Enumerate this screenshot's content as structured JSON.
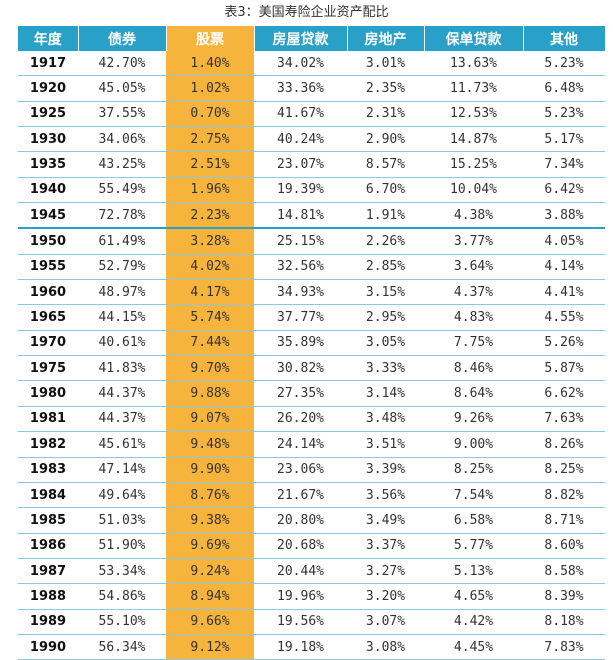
{
  "title": "表3：美国寿险企业资产配比",
  "headers": [
    "年度",
    "债券",
    "股票",
    "房屋贷款",
    "房地产",
    "保单贷款",
    "其他"
  ],
  "highlight_color": "#f7b43c",
  "header_color": "#29a0c8",
  "rows": [
    [
      "1917",
      "42.70%",
      "1.40%",
      "34.02%",
      "3.01%",
      "13.63%",
      "5.23%"
    ],
    [
      "1920",
      "45.05%",
      "1.02%",
      "33.36%",
      "2.35%",
      "11.73%",
      "6.48%"
    ],
    [
      "1925",
      "37.55%",
      "0.70%",
      "41.67%",
      "2.31%",
      "12.53%",
      "5.23%"
    ],
    [
      "1930",
      "34.06%",
      "2.75%",
      "40.24%",
      "2.90%",
      "14.87%",
      "5.17%"
    ],
    [
      "1935",
      "43.25%",
      "2.51%",
      "23.07%",
      "8.57%",
      "15.25%",
      "7.34%"
    ],
    [
      "1940",
      "55.49%",
      "1.96%",
      "19.39%",
      "6.70%",
      "10.04%",
      "6.42%"
    ],
    [
      "1945",
      "72.78%",
      "2.23%",
      "14.81%",
      "1.91%",
      "4.38%",
      "3.88%"
    ],
    [
      "1950",
      "61.49%",
      "3.28%",
      "25.15%",
      "2.26%",
      "3.77%",
      "4.05%"
    ],
    [
      "1955",
      "52.79%",
      "4.02%",
      "32.56%",
      "2.85%",
      "3.64%",
      "4.14%"
    ],
    [
      "1960",
      "48.97%",
      "4.17%",
      "34.93%",
      "3.15%",
      "4.37%",
      "4.41%"
    ],
    [
      "1965",
      "44.15%",
      "5.74%",
      "37.77%",
      "2.95%",
      "4.83%",
      "4.55%"
    ],
    [
      "1970",
      "40.61%",
      "7.44%",
      "35.89%",
      "3.05%",
      "7.75%",
      "5.26%"
    ],
    [
      "1975",
      "41.83%",
      "9.70%",
      "30.82%",
      "3.33%",
      "8.46%",
      "5.87%"
    ],
    [
      "1980",
      "44.37%",
      "9.88%",
      "27.35%",
      "3.14%",
      "8.64%",
      "6.62%"
    ],
    [
      "1981",
      "44.37%",
      "9.07%",
      "26.20%",
      "3.48%",
      "9.26%",
      "7.63%"
    ],
    [
      "1982",
      "45.61%",
      "9.48%",
      "24.14%",
      "3.51%",
      "9.00%",
      "8.26%"
    ],
    [
      "1983",
      "47.14%",
      "9.90%",
      "23.06%",
      "3.39%",
      "8.25%",
      "8.25%"
    ],
    [
      "1984",
      "49.64%",
      "8.76%",
      "21.67%",
      "3.56%",
      "7.54%",
      "8.82%"
    ],
    [
      "1985",
      "51.03%",
      "9.38%",
      "20.80%",
      "3.49%",
      "6.58%",
      "8.71%"
    ],
    [
      "1986",
      "51.90%",
      "9.69%",
      "20.68%",
      "3.37%",
      "5.77%",
      "8.60%"
    ],
    [
      "1987",
      "53.34%",
      "9.24%",
      "20.44%",
      "3.27%",
      "5.13%",
      "8.58%"
    ],
    [
      "1988",
      "54.86%",
      "8.94%",
      "19.96%",
      "3.20%",
      "4.65%",
      "8.39%"
    ],
    [
      "1989",
      "55.10%",
      "9.66%",
      "19.56%",
      "3.07%",
      "4.42%",
      "8.18%"
    ],
    [
      "1990",
      "56.34%",
      "9.12%",
      "19.18%",
      "3.08%",
      "4.45%",
      "7.83%"
    ]
  ]
}
